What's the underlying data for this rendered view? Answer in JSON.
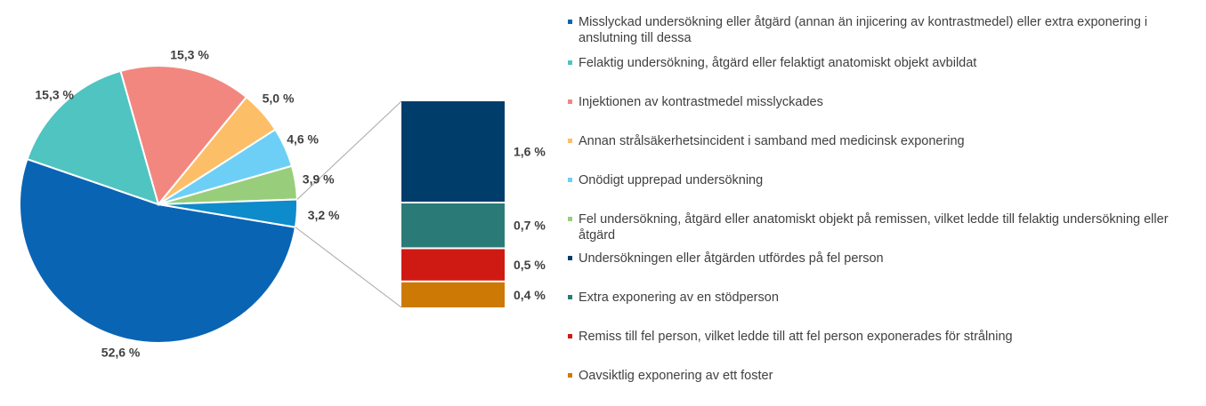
{
  "chart_data": {
    "type": "pie",
    "title": "",
    "pie": {
      "slices": [
        {
          "label": "Misslyckad undersökning eller åtgärd (annan än injicering av kontrastmedel) eller extra exponering i anslutning till dessa",
          "value": 52.6,
          "value_label": "52,6 %",
          "color": "#0A64B4"
        },
        {
          "label": "Felaktig undersökning, åtgärd eller felaktigt anatomiskt objekt avbildat",
          "value": 15.3,
          "value_label": "15,3 %",
          "color": "#4FC4C0"
        },
        {
          "label": "Injektionen av kontrastmedel misslyckades",
          "value": 15.3,
          "value_label": "15,3 %",
          "color": "#F28780"
        },
        {
          "label": "Annan strålsäkerhetsincident i samband med medicinsk exponering",
          "value": 5.0,
          "value_label": "5,0 %",
          "color": "#FDBE68"
        },
        {
          "label": "Onödigt upprepad undersökning",
          "value": 4.6,
          "value_label": "4,6 %",
          "color": "#6ECFF6"
        },
        {
          "label": "Fel undersökning, åtgärd eller anatomiskt objekt på remissen, vilket ledde till felaktig undersökning eller åtgärd",
          "value": 3.9,
          "value_label": "3,9 %",
          "color": "#98CE7B"
        },
        {
          "label": "",
          "value": 3.2,
          "value_label": "3,2 %",
          "color": "#0E8BCB"
        }
      ]
    },
    "bar": {
      "segments": [
        {
          "label": "Undersökningen eller åtgärden utfördes på fel person",
          "value": 1.6,
          "value_label": "1,6 %",
          "color": "#003D6B"
        },
        {
          "label": "Extra exponering av en stödperson",
          "value": 0.7,
          "value_label": "0,7 %",
          "color": "#2A7B78"
        },
        {
          "label": "Remiss till fel person, vilket ledde till att fel person exponerades för strålning",
          "value": 0.5,
          "value_label": "0,5 %",
          "color": "#CF1A14"
        },
        {
          "label": "Oavsiktlig exponering av ett foster",
          "value": 0.4,
          "value_label": "0,4 %",
          "color": "#CC7A05"
        }
      ]
    },
    "legend_position": "right"
  },
  "legend": {
    "items": [
      {
        "label": "Misslyckad undersökning eller åtgärd (annan än injicering av kontrastmedel) eller extra exponering i anslutning till dessa",
        "color": "#0A64B4"
      },
      {
        "label": "Felaktig undersökning, åtgärd eller felaktigt anatomiskt objekt avbildat",
        "color": "#4FC4C0"
      },
      {
        "label": "Injektionen av kontrastmedel misslyckades",
        "color": "#F28780"
      },
      {
        "label": "Annan strålsäkerhetsincident i samband med medicinsk exponering",
        "color": "#FDBE68"
      },
      {
        "label": "Onödigt upprepad undersökning",
        "color": "#6ECFF6"
      },
      {
        "label": "Fel undersökning, åtgärd eller anatomiskt objekt på remissen, vilket ledde till felaktig undersökning eller åtgärd",
        "color": "#98CE7B"
      },
      {
        "label": "Undersökningen eller åtgärden utfördes på fel person",
        "color": "#003D6B"
      },
      {
        "label": "Extra exponering av en stödperson",
        "color": "#2A7B78"
      },
      {
        "label": "Remiss till fel person, vilket ledde till att fel person exponerades för strålning",
        "color": "#CF1A14"
      },
      {
        "label": "Oavsiktlig exponering av ett foster",
        "color": "#CC7A05"
      }
    ]
  }
}
